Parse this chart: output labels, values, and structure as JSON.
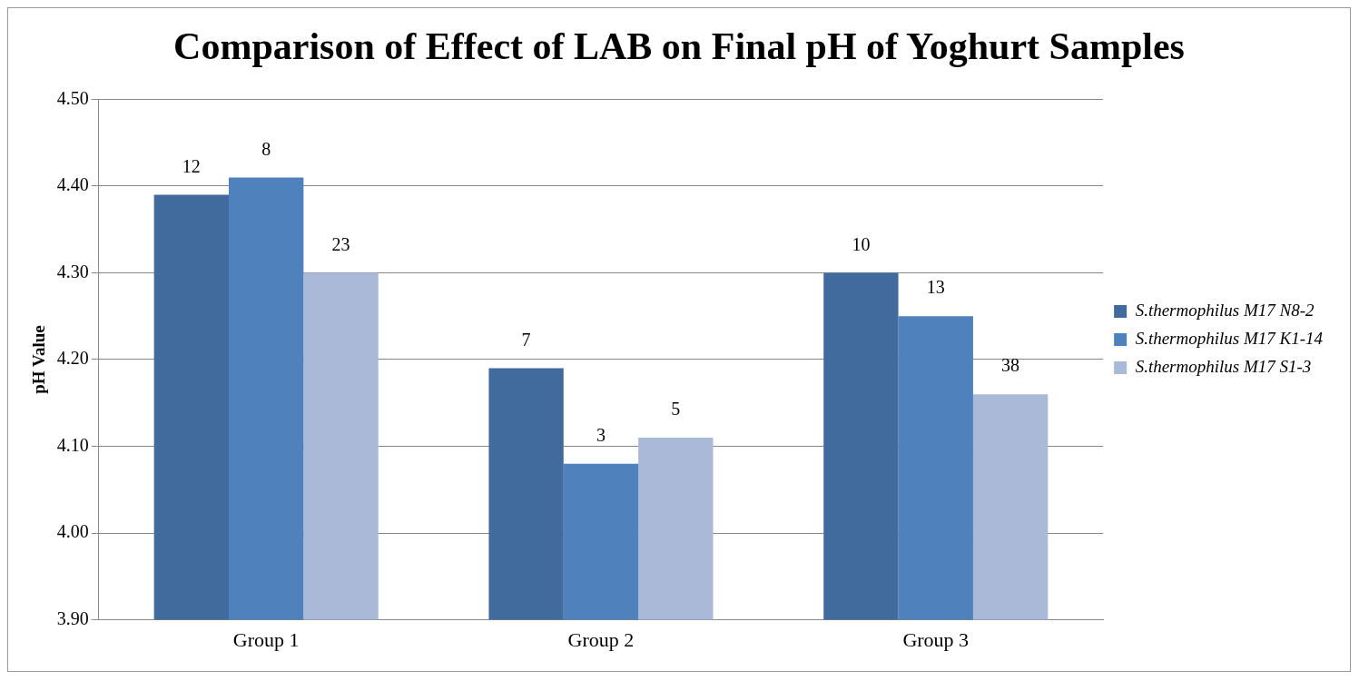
{
  "chart_data": {
    "type": "bar",
    "title": "Comparison of Effect of LAB on Final pH of Yoghurt Samples",
    "ylabel": "pH Value",
    "categories": [
      "Group 1",
      "Group 2",
      "Group 3"
    ],
    "series": [
      {
        "name": "S.thermophilus M17 N8-2",
        "color": "#416b9c",
        "values": [
          4.39,
          4.19,
          4.3
        ]
      },
      {
        "name": "S.thermophilus M17 K1-14",
        "color": "#4f81bd",
        "values": [
          4.41,
          4.08,
          4.25
        ]
      },
      {
        "name": "S.thermophilus M17 S1-3",
        "color": "#aab9d7",
        "values": [
          4.3,
          4.11,
          4.16
        ]
      }
    ],
    "annotations": [
      "12",
      "8",
      "23",
      "7",
      "3",
      "5",
      "10",
      "13",
      "38"
    ],
    "ylim": [
      3.9,
      4.5
    ],
    "yticks": [
      {
        "value": 3.9,
        "label": "3.90"
      },
      {
        "value": 4.0,
        "label": "4.00"
      },
      {
        "value": 4.1,
        "label": "4.10"
      },
      {
        "value": 4.2,
        "label": "4.20"
      },
      {
        "value": 4.3,
        "label": "4.30"
      },
      {
        "value": 4.4,
        "label": "4.40"
      },
      {
        "value": 4.5,
        "label": "4.50"
      }
    ],
    "grid": "y",
    "legend": "right"
  }
}
